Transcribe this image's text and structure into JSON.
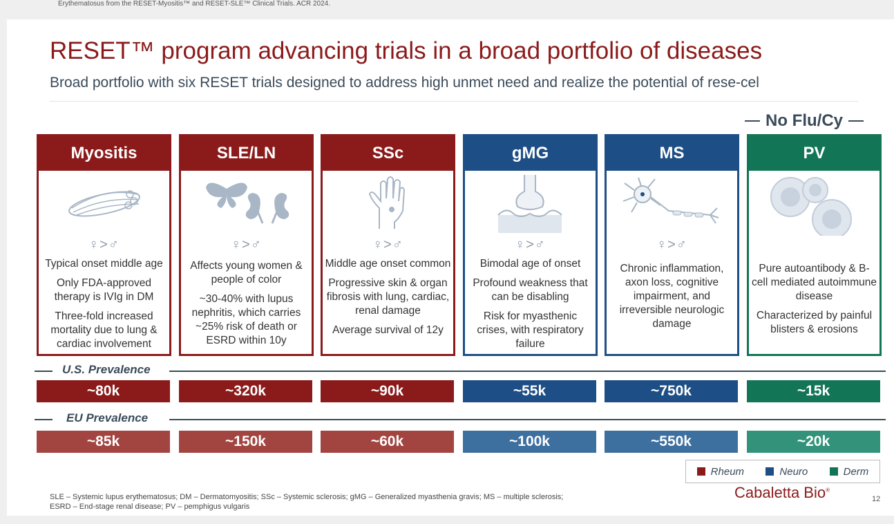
{
  "top_reference": "Erythematosus from the RESET-Myositis™ and RESET-SLE™ Clinical Trials. ACR 2024.",
  "title": "RESET™ program advancing trials in a broad portfolio of diseases",
  "subtitle": "Broad portfolio with six RESET trials designed to address high unmet need and realize the potential of rese-cel",
  "no_flu_label": "No Flu/Cy",
  "gender_symbol": "♀>♂",
  "colors": {
    "rheum": "#8b1a1a",
    "neuro": "#1d4e85",
    "derm": "#127556",
    "rheum_light": "#a24540",
    "neuro_light": "#3d6f9f",
    "derm_light": "#33937a"
  },
  "diseases": [
    {
      "name": "Myositis",
      "category": "rheum",
      "icon": "muscle-icon",
      "desc": [
        "Typical onset middle age",
        "Only FDA-approved therapy is IVIg in DM",
        "Three-fold increased mortality due to lung & cardiac involvement"
      ],
      "us": "~80k",
      "eu": "~85k"
    },
    {
      "name": "SLE/LN",
      "category": "rheum",
      "icon": "butterfly-kidney-icon",
      "desc": [
        "Affects young women & people of color",
        "~30-40% with lupus nephritis, which carries ~25% risk of death or ESRD within 10y"
      ],
      "us": "~320k",
      "eu": "~150k"
    },
    {
      "name": "SSc",
      "category": "rheum",
      "icon": "hand-icon",
      "desc": [
        "Middle age onset common",
        "Progressive skin & organ fibrosis with lung, cardiac, renal damage",
        "Average survival of 12y"
      ],
      "us": "~90k",
      "eu": "~60k"
    },
    {
      "name": "gMG",
      "category": "neuro",
      "icon": "synapse-icon",
      "desc": [
        "Bimodal age of onset",
        "Profound weakness that can be disabling",
        "Risk for myasthenic crises, with respiratory failure"
      ],
      "us": "~55k",
      "eu": "~100k"
    },
    {
      "name": "MS",
      "category": "neuro",
      "icon": "neuron-icon",
      "desc": [
        "Chronic inflammation, axon loss, cognitive impairment, and irreversible neurologic damage"
      ],
      "us": "~750k",
      "eu": "~550k"
    },
    {
      "name": "PV",
      "category": "derm",
      "icon": "cells-icon",
      "desc": [
        "Pure autoantibody & B-cell mediated autoimmune disease",
        "Characterized by painful blisters & erosions"
      ],
      "us": "~15k",
      "eu": "~20k"
    }
  ],
  "us_prevalence_label": "U.S. Prevalence",
  "eu_prevalence_label": "EU Prevalence",
  "legend": [
    {
      "label": "Rheum",
      "color": "#8b1a1a"
    },
    {
      "label": "Neuro",
      "color": "#1d4e85"
    },
    {
      "label": "Derm",
      "color": "#127556"
    }
  ],
  "footnote_line1": "SLE – Systemic lupus erythematosus; DM – Dermatomyositis; SSc – Systemic sclerosis; gMG – Generalized myasthenia gravis; MS – multiple sclerosis;",
  "footnote_line2": "ESRD – End-stage renal disease; PV – pemphigus vulgaris",
  "logo_text": "Cabaletta Bio",
  "logo_mark": "®",
  "page_number": "12"
}
